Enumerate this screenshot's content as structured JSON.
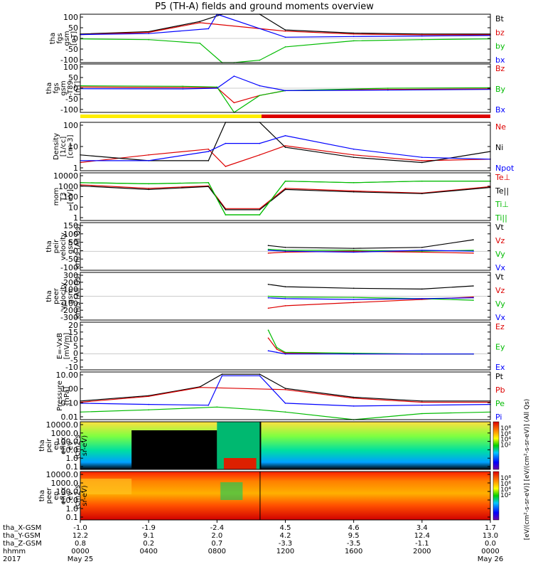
{
  "title": "P5 (TH-A) fields and ground moments overview",
  "panels": [
    {
      "id": "fgs_gsm",
      "ylabel": [
        "tha",
        "fgs",
        "gsm",
        "[nT]"
      ],
      "ticks": [
        "100",
        "50",
        "0",
        "-50",
        "-100"
      ],
      "legend": [
        {
          "label": "Bt",
          "color": "#000000"
        },
        {
          "label": "bz",
          "color": "#dd0000"
        },
        {
          "label": "by",
          "color": "#00bb00"
        },
        {
          "label": "bx",
          "color": "#0000ff"
        }
      ]
    },
    {
      "id": "fgs_gsm_t89",
      "ylabel": [
        "tha",
        "fgs",
        "gsm",
        "-T89",
        "[nT]"
      ],
      "ticks": [
        "100",
        "50",
        "0",
        "-50",
        "-100"
      ],
      "legend": [
        {
          "label": "Bz",
          "color": "#dd0000"
        },
        {
          "label": "By",
          "color": "#00bb00"
        },
        {
          "label": "Bx",
          "color": "#0000ff"
        }
      ]
    },
    {
      "id": "density",
      "ylabel": [
        "Density",
        "[1/cc]",
        "[cm-3]"
      ],
      "ticks": [
        "100",
        "10",
        "1"
      ],
      "legend": [
        {
          "label": "Ne",
          "color": "#dd0000"
        },
        {
          "label": "Ni",
          "color": "#000000"
        },
        {
          "label": "Npot",
          "color": "#0000ff"
        }
      ]
    },
    {
      "id": "temperature",
      "ylabel": [
        "mom",
        "T3",
        "[eV]"
      ],
      "ticks": [
        "10000",
        "1000",
        "100",
        "10",
        "1"
      ],
      "legend": [
        {
          "label": "Te⊥",
          "color": "#dd0000"
        },
        {
          "label": "Te||",
          "color": "#000000"
        },
        {
          "label": "Ti⊥",
          "color": "#00bb00"
        },
        {
          "label": "Ti||",
          "color": "#00bb00"
        }
      ]
    },
    {
      "id": "peir_velocity",
      "ylabel": [
        "tha",
        "peir",
        "velocity",
        "gsm",
        "km/s (All Qs)"
      ],
      "ticks": [
        "150",
        "100",
        "50",
        "0",
        "-50",
        "-100"
      ],
      "legend": [
        {
          "label": "Vt",
          "color": "#000000"
        },
        {
          "label": "Vz",
          "color": "#dd0000"
        },
        {
          "label": "Vy",
          "color": "#00bb00"
        },
        {
          "label": "Vx",
          "color": "#0000ff"
        }
      ]
    },
    {
      "id": "peer_velocity",
      "ylabel": [
        "tha",
        "peer",
        "velocity",
        "gsm",
        "km/s (All Qs)"
      ],
      "ticks": [
        "300",
        "200",
        "100",
        "0",
        "-100",
        "-200",
        "-300"
      ],
      "legend": [
        {
          "label": "Vt",
          "color": "#000000"
        },
        {
          "label": "Vz",
          "color": "#dd0000"
        },
        {
          "label": "Vy",
          "color": "#00bb00"
        },
        {
          "label": "Vx",
          "color": "#0000ff"
        }
      ]
    },
    {
      "id": "efield",
      "ylabel": [
        "E=-VxB",
        "[mV/m]"
      ],
      "ticks": [
        "20",
        "15",
        "10",
        "5",
        "0",
        "-5",
        "-10"
      ],
      "legend": [
        {
          "label": "Ez",
          "color": "#dd0000"
        },
        {
          "label": "Ey",
          "color": "#00bb00"
        },
        {
          "label": "Ex",
          "color": "#0000ff"
        }
      ]
    },
    {
      "id": "pressure",
      "ylabel": [
        "Pressure",
        "[nPa]"
      ],
      "ticks": [
        "10.00",
        "1.00",
        "0.10",
        "0.01"
      ],
      "legend": [
        {
          "label": "Pt",
          "color": "#000000"
        },
        {
          "label": "Pb",
          "color": "#dd0000"
        },
        {
          "label": "Pe",
          "color": "#00bb00"
        },
        {
          "label": "Pi",
          "color": "#0000ff"
        }
      ]
    },
    {
      "id": "peir_spec",
      "ylabel": [
        "tha",
        "peir",
        "en",
        "eflux",
        "eV",
        "(cm2-s-",
        "sr-eV)"
      ],
      "ticks": [
        "10000.0",
        "1000.0",
        "100.0",
        "10.0",
        "1.0",
        "0.1"
      ]
    },
    {
      "id": "peer_spec",
      "ylabel": [
        "tha",
        "peer",
        "en",
        "eflux",
        "eV",
        "(cm2-s-",
        "sr-eV)"
      ],
      "ticks": [
        "10000.0",
        "1000.0",
        "100.0",
        "10.0",
        "1.0",
        "0.1"
      ]
    }
  ],
  "colorbar": {
    "ticks": [
      "10⁸",
      "10⁶",
      "10⁴",
      "10²"
    ],
    "label": "[eV/(cm²-s-sr-eV)] [eV/(cm²-s-sr-eV)] (All Qs)"
  },
  "xaxis": {
    "row_labels": [
      "tha_X-GSM",
      "tha_Y-GSM",
      "tha_Z-GSM",
      "hhmm",
      "2017"
    ],
    "columns": [
      {
        "vals": [
          "-1.0",
          "12.2",
          "0.8",
          "0000",
          "May 25"
        ]
      },
      {
        "vals": [
          "-1.9",
          "9.1",
          "0.2",
          "0400",
          ""
        ]
      },
      {
        "vals": [
          "-2.4",
          "2.0",
          "0.7",
          "0800",
          ""
        ]
      },
      {
        "vals": [
          "4.5",
          "4.2",
          "-3.3",
          "1200",
          ""
        ]
      },
      {
        "vals": [
          "4.6",
          "9.5",
          "-3.5",
          "1600",
          ""
        ]
      },
      {
        "vals": [
          "3.4",
          "12.4",
          "-1.1",
          "2000",
          ""
        ]
      },
      {
        "vals": [
          "1.7",
          "13.0",
          "0.0",
          "0000",
          "May 26"
        ]
      }
    ]
  },
  "chart_data": [
    {
      "type": "line",
      "title": "P5 (TH-A) fields and ground moments overview",
      "x_hours": [
        0,
        4,
        8,
        12,
        16,
        20,
        24
      ],
      "x_tick_labels": [
        "0000",
        "0400",
        "0800",
        "1200",
        "1600",
        "2000",
        "0000"
      ],
      "ylabel": "tha fgs gsm [nT]",
      "ylim": [
        -100,
        100
      ],
      "series": [
        {
          "name": "Bt",
          "x": [
            0,
            4,
            7,
            8.3,
            9,
            10.5,
            12,
            16,
            20,
            24
          ],
          "values": [
            18,
            28,
            70,
            100,
            100,
            100,
            35,
            22,
            18,
            18
          ]
        },
        {
          "name": "bz",
          "x": [
            0,
            4,
            7,
            12,
            16,
            20,
            24
          ],
          "values": [
            16,
            25,
            65,
            30,
            18,
            15,
            15
          ]
        },
        {
          "name": "by",
          "x": [
            0,
            4,
            7,
            8.3,
            9,
            10.5,
            12,
            16,
            20,
            24
          ],
          "values": [
            -2,
            -5,
            -20,
            -100,
            -100,
            -90,
            -35,
            -10,
            -5,
            -2
          ]
        },
        {
          "name": "bx",
          "x": [
            0,
            4,
            7.5,
            8,
            12,
            16,
            20,
            24
          ],
          "values": [
            16,
            20,
            40,
            100,
            5,
            8,
            10,
            12
          ]
        }
      ]
    },
    {
      "type": "line",
      "ylabel": "tha fgs gsm -T89 [nT]",
      "ylim": [
        -100,
        100
      ],
      "series": [
        {
          "name": "Bz",
          "x": [
            0,
            6,
            8,
            9,
            10.5,
            12,
            18,
            24
          ],
          "values": [
            5,
            3,
            2,
            -60,
            -30,
            -10,
            -5,
            -3
          ]
        },
        {
          "name": "By",
          "x": [
            0,
            6,
            8,
            9,
            10.5,
            12,
            18,
            24
          ],
          "values": [
            10,
            8,
            5,
            -100,
            -30,
            -10,
            0,
            2
          ]
        },
        {
          "name": "Bx",
          "x": [
            0,
            6,
            8,
            9,
            10.5,
            12,
            18,
            24
          ],
          "values": [
            -2,
            -3,
            0,
            50,
            10,
            -10,
            -8,
            -5
          ]
        }
      ]
    },
    {
      "type": "line",
      "ylabel": "Density [cm-3]",
      "yscale": "log",
      "ylim": [
        0.3,
        100
      ],
      "series": [
        {
          "name": "Ne",
          "x": [
            0,
            4,
            7.5,
            8.5,
            10.5,
            12,
            16,
            20,
            24
          ],
          "values": [
            0.8,
            2,
            4,
            0.5,
            2,
            6,
            2,
            1,
            1.2
          ]
        },
        {
          "name": "Ni",
          "x": [
            0,
            4,
            7.5,
            8.5,
            10.5,
            12,
            16,
            20,
            24
          ],
          "values": [
            2,
            1,
            1,
            100,
            100,
            5,
            1.5,
            0.8,
            3
          ]
        },
        {
          "name": "Npot",
          "x": [
            0,
            4,
            7.5,
            8.5,
            10.5,
            12,
            16,
            20,
            24
          ],
          "values": [
            1,
            1,
            3,
            8,
            8,
            20,
            4,
            1.5,
            1.2
          ]
        }
      ]
    },
    {
      "type": "line",
      "ylabel": "momT3 [eV]",
      "yscale": "log",
      "ylim": [
        1,
        10000
      ],
      "series": [
        {
          "name": "Te⊥",
          "x": [
            0,
            4,
            7.5,
            8.5,
            10.5,
            12,
            16,
            20,
            24
          ],
          "values": [
            1000,
            500,
            800,
            10,
            10,
            500,
            300,
            200,
            700
          ]
        },
        {
          "name": "Te||",
          "x": [
            0,
            4,
            7.5,
            8.5,
            10.5,
            12,
            16,
            20,
            24
          ],
          "values": [
            800,
            400,
            700,
            8,
            8,
            400,
            250,
            180,
            600
          ]
        },
        {
          "name": "Ti⊥",
          "x": [
            0,
            4,
            7.5,
            8.5,
            10.5,
            12,
            16,
            20,
            24
          ],
          "values": [
            1500,
            1200,
            1500,
            3,
            3,
            2000,
            1500,
            2000,
            2000
          ]
        },
        {
          "name": "Ti||",
          "x": [
            0,
            4,
            7.5,
            8.5,
            10.5,
            12,
            16,
            20,
            24
          ],
          "values": [
            1500,
            1200,
            1500,
            3,
            3,
            2000,
            1500,
            2000,
            2000
          ]
        }
      ]
    },
    {
      "type": "line",
      "ylabel": "tha peir velocity gsm km/s (All Qs)",
      "ylim": [
        -100,
        150
      ],
      "series": [
        {
          "name": "Vt",
          "x": [
            11,
            12,
            16,
            20,
            23
          ],
          "values": [
            30,
            20,
            15,
            20,
            60
          ]
        },
        {
          "name": "Vz",
          "x": [
            11,
            12,
            16,
            20,
            23
          ],
          "values": [
            -10,
            -5,
            0,
            -5,
            -10
          ]
        },
        {
          "name": "Vy",
          "x": [
            11,
            12,
            16,
            20,
            23
          ],
          "values": [
            10,
            5,
            5,
            0,
            5
          ]
        },
        {
          "name": "Vx",
          "x": [
            11,
            12,
            16,
            20,
            23
          ],
          "values": [
            5,
            0,
            -5,
            5,
            0
          ]
        }
      ]
    },
    {
      "type": "line",
      "ylabel": "tha peer velocity gsm km/s (All Qs)",
      "ylim": [
        -300,
        300
      ],
      "series": [
        {
          "name": "Vt",
          "x": [
            11,
            12,
            16,
            20,
            23
          ],
          "values": [
            150,
            120,
            100,
            90,
            130
          ]
        },
        {
          "name": "Vz",
          "x": [
            11,
            12,
            16,
            20,
            23
          ],
          "values": [
            -150,
            -120,
            -80,
            -40,
            -10
          ]
        },
        {
          "name": "Vy",
          "x": [
            11,
            12,
            16,
            20,
            23
          ],
          "values": [
            0,
            -10,
            -15,
            -30,
            -50
          ]
        },
        {
          "name": "Vx",
          "x": [
            11,
            12,
            16,
            20,
            23
          ],
          "values": [
            -20,
            -30,
            -40,
            -30,
            -20
          ]
        }
      ]
    },
    {
      "type": "line",
      "ylabel": "E=-VxB [mV/m]",
      "ylim": [
        -10,
        20
      ],
      "series": [
        {
          "name": "Ez",
          "x": [
            11,
            11.5,
            12,
            16,
            20,
            23
          ],
          "values": [
            10,
            3,
            0.5,
            0,
            0,
            0
          ]
        },
        {
          "name": "Ey",
          "x": [
            11,
            11.5,
            12,
            16,
            20,
            23
          ],
          "values": [
            15,
            4,
            1,
            0.5,
            0,
            0
          ]
        },
        {
          "name": "Ex",
          "x": [
            11,
            11.5,
            12,
            16,
            20,
            23
          ],
          "values": [
            2,
            1,
            0,
            0,
            0,
            0
          ]
        }
      ]
    },
    {
      "type": "line",
      "ylabel": "Pressure [nPa]",
      "yscale": "log",
      "ylim": [
        0.005,
        30
      ],
      "series": [
        {
          "name": "Pt",
          "x": [
            0,
            4,
            7,
            8.3,
            10.5,
            12,
            16,
            20,
            24
          ],
          "values": [
            0.15,
            0.4,
            2,
            20,
            20,
            1.5,
            0.3,
            0.15,
            0.15
          ]
        },
        {
          "name": "Pb",
          "x": [
            0,
            4,
            7,
            12,
            16,
            20,
            24
          ],
          "values": [
            0.12,
            0.35,
            1.8,
            1.2,
            0.25,
            0.12,
            0.12
          ]
        },
        {
          "name": "Pe",
          "x": [
            0,
            4,
            8,
            10.5,
            12,
            16,
            20,
            24
          ],
          "values": [
            0.02,
            0.03,
            0.05,
            0.03,
            0.02,
            0.005,
            0.015,
            0.02
          ]
        },
        {
          "name": "Pi",
          "x": [
            0,
            4,
            7.5,
            8.3,
            10.5,
            12,
            16,
            20,
            24
          ],
          "values": [
            0.1,
            0.08,
            0.07,
            15,
            15,
            0.1,
            0.06,
            0.07,
            0.08
          ]
        }
      ]
    },
    {
      "type": "heatmap",
      "ylabel": "tha peir en eflux eV (cm2-s-sr-eV)",
      "yscale": "log",
      "ylim": [
        0.1,
        10000
      ]
    },
    {
      "type": "heatmap",
      "ylabel": "tha peer en eflux eV (cm2-s-sr-eV)",
      "yscale": "log",
      "ylim": [
        0.1,
        10000
      ]
    }
  ]
}
